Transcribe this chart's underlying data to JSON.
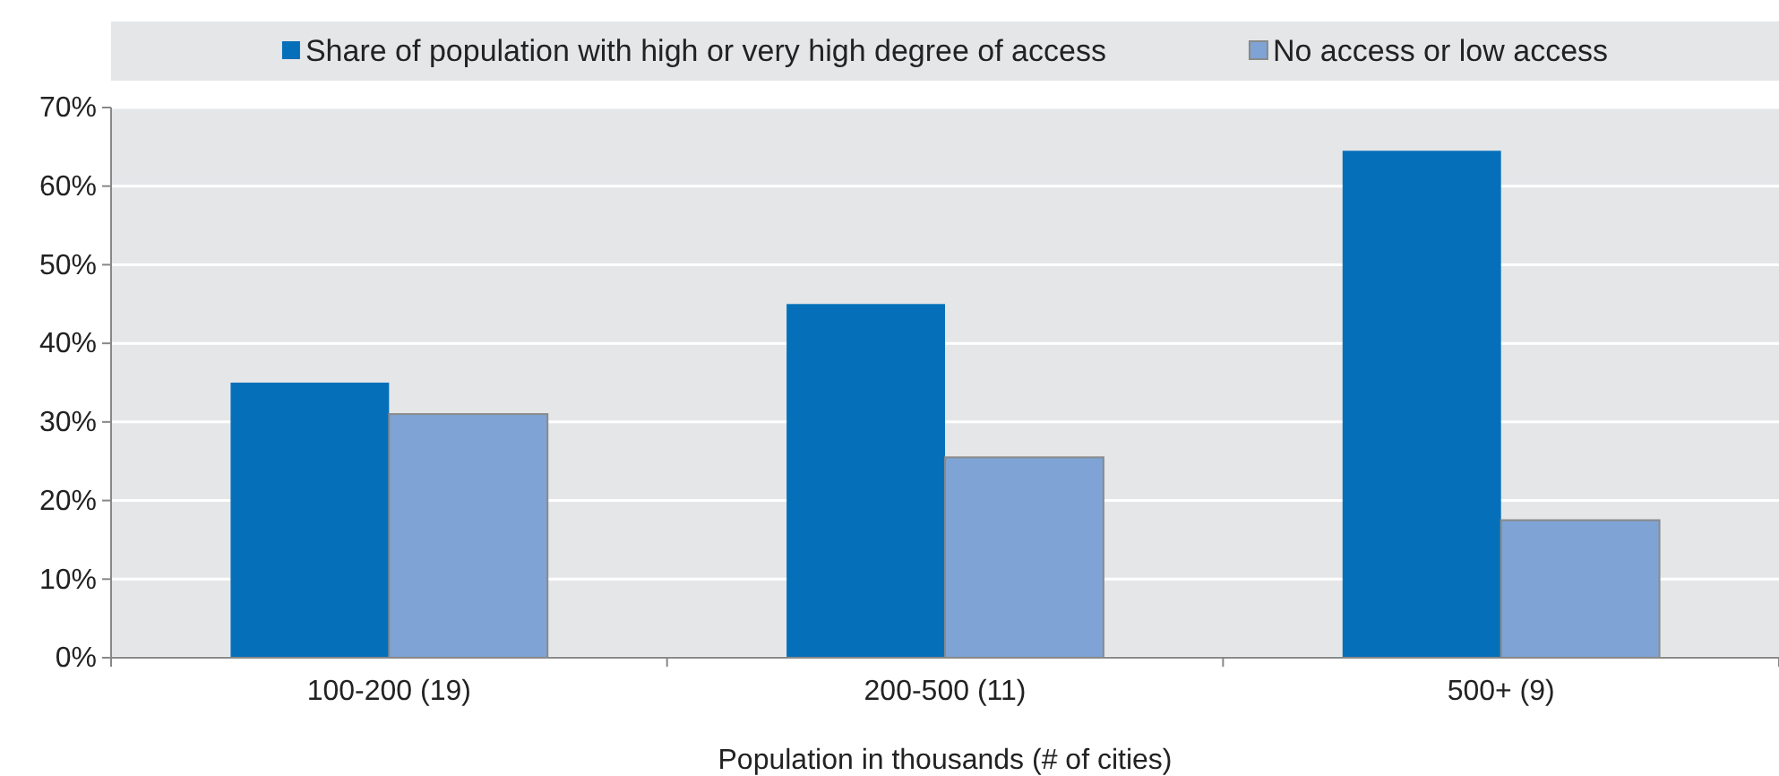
{
  "chart_data": {
    "type": "bar",
    "xlabel": "Population in thousands (# of cities)",
    "categories": [
      "100-200 (19)",
      "200-500 (11)",
      "500+ (9)"
    ],
    "series": [
      {
        "name": "Share of population with high or very high degree of access",
        "color": "#0570b9",
        "values": [
          35,
          45,
          64.5
        ]
      },
      {
        "name": "No access or low access",
        "color": "#7fa3d4",
        "values": [
          31,
          25.5,
          17.5
        ]
      }
    ],
    "ylim": [
      0,
      70
    ],
    "yticks": [
      {
        "value": 0,
        "label": "0%"
      },
      {
        "value": 10,
        "label": "10%"
      },
      {
        "value": 20,
        "label": "20%"
      },
      {
        "value": 30,
        "label": "30%"
      },
      {
        "value": 40,
        "label": "40%"
      },
      {
        "value": 50,
        "label": "50%"
      },
      {
        "value": 60,
        "label": "60%"
      },
      {
        "value": 70,
        "label": "70%"
      }
    ],
    "grid": "y",
    "legend": "top"
  }
}
